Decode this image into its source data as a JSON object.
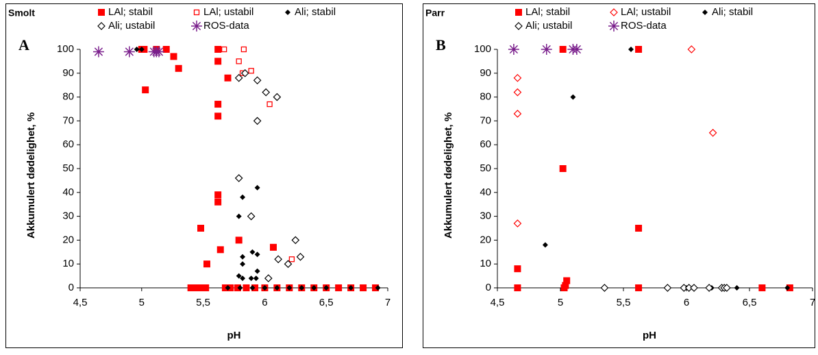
{
  "chart_data": [
    {
      "type": "scatter",
      "title": "Smolt",
      "panel_label": "A",
      "x_label": "pH",
      "y_label": "Akkumulert dødelighet, %",
      "xlim": [
        4.5,
        7
      ],
      "ylim": [
        0,
        100
      ],
      "xticks": [
        {
          "value": 4.5,
          "label": "4,5"
        },
        5,
        {
          "value": 5.5,
          "label": "5,5"
        },
        6,
        {
          "value": 6.5,
          "label": "6,5"
        },
        7
      ],
      "yticks": [
        0,
        10,
        20,
        30,
        40,
        50,
        60,
        70,
        80,
        90,
        100
      ],
      "series": [
        {
          "name": "LAl; stabil",
          "color": "#ff0000",
          "marker": "square",
          "x": [
            5.0,
            5.02,
            5.03,
            5.12,
            5.2,
            5.26,
            5.3,
            5.48,
            5.53,
            5.62,
            5.62,
            5.62,
            5.62,
            5.62,
            5.62,
            5.64,
            5.7,
            5.79,
            6.07,
            5.4,
            5.45,
            5.5,
            5.52,
            5.68,
            5.72,
            5.78,
            5.85,
            5.92,
            6.0,
            6.1,
            6.2,
            6.3,
            6.4,
            6.5,
            6.6,
            6.7,
            6.8,
            6.9
          ],
          "y": [
            100,
            100,
            83,
            100,
            100,
            97,
            92,
            25,
            10,
            100,
            95,
            77,
            72,
            39,
            36,
            16,
            88,
            20,
            17,
            0,
            0,
            0,
            0,
            0,
            0,
            0,
            0,
            0,
            0,
            0,
            0,
            0,
            0,
            0,
            0,
            0,
            0,
            0
          ]
        },
        {
          "name": "LAl; ustabil",
          "color": "#ff0000",
          "marker": "open-square",
          "x": [
            5.67,
            5.83,
            5.79,
            5.82,
            5.89,
            6.04,
            6.22
          ],
          "y": [
            100,
            100,
            95,
            90,
            91,
            77,
            12
          ]
        },
        {
          "name": "Ali; stabil",
          "color": "#000000",
          "marker": "diamond",
          "x": [
            4.96,
            5.0,
            5.94,
            5.82,
            5.79,
            5.9,
            5.94,
            5.82,
            5.82,
            5.94,
            5.79,
            5.89,
            5.93,
            5.82,
            5.7,
            5.8,
            5.9,
            6.0,
            6.1,
            6.2,
            6.3,
            6.4,
            6.5,
            6.7,
            6.92
          ],
          "y": [
            100,
            100,
            42,
            38,
            30,
            15,
            14,
            13,
            10,
            7,
            5,
            4,
            4,
            4,
            0,
            0,
            0,
            0,
            0,
            0,
            0,
            0,
            0,
            0,
            0
          ]
        },
        {
          "name": "Ali; ustabil",
          "color": "#000000",
          "marker": "open-diamond",
          "x": [
            5.79,
            5.84,
            5.94,
            6.01,
            6.1,
            5.94,
            5.79,
            5.89,
            6.25,
            6.29,
            6.11,
            6.19,
            6.03
          ],
          "y": [
            88,
            90,
            87,
            82,
            80,
            70,
            46,
            30,
            20,
            13,
            12,
            10,
            4
          ]
        },
        {
          "name": "ROS-data",
          "color": "#7a1f8c",
          "marker": "asterisk",
          "x": [
            4.65,
            4.9,
            5.1,
            5.12,
            5.14
          ],
          "y": [
            99,
            99,
            99,
            99,
            99
          ]
        }
      ]
    },
    {
      "type": "scatter",
      "title": "Parr",
      "panel_label": "B",
      "x_label": "pH",
      "y_label": "Akkumulert dødelighet, %",
      "xlim": [
        4.5,
        7
      ],
      "ylim": [
        0,
        100
      ],
      "xticks": [
        {
          "value": 4.5,
          "label": "4,5"
        },
        5,
        {
          "value": 5.5,
          "label": "5,5"
        },
        6,
        {
          "value": 6.5,
          "label": "6,5"
        },
        7
      ],
      "yticks": [
        0,
        10,
        20,
        30,
        40,
        50,
        60,
        70,
        80,
        90,
        100
      ],
      "series": [
        {
          "name": "LAl; stabil",
          "color": "#ff0000",
          "marker": "square",
          "x": [
            4.66,
            4.66,
            5.02,
            5.02,
            5.05,
            5.03,
            5.04,
            5.62,
            5.62,
            5.62,
            6.6,
            6.82
          ],
          "y": [
            8,
            0,
            100,
            50,
            3,
            0,
            1,
            100,
            25,
            0,
            0,
            0
          ]
        },
        {
          "name": "LAl; ustabil",
          "color": "#ff0000",
          "marker": "open-diamond",
          "x": [
            4.66,
            4.66,
            4.66,
            4.66,
            6.04,
            6.21
          ],
          "y": [
            88,
            82,
            73,
            27,
            100,
            65
          ]
        },
        {
          "name": "Ali; stabil",
          "color": "#000000",
          "marker": "diamond",
          "x": [
            5.56,
            5.1,
            4.88,
            5.35,
            5.85,
            6.0,
            6.05,
            6.2,
            6.3,
            6.4,
            6.8
          ],
          "y": [
            100,
            80,
            18,
            0,
            0,
            0,
            0,
            0,
            0,
            0,
            0
          ]
        },
        {
          "name": "Ali; ustabil",
          "color": "#000000",
          "marker": "open-diamond",
          "x": [
            5.35,
            5.85,
            5.98,
            6.02,
            6.06,
            6.18,
            6.28,
            6.3,
            6.32
          ],
          "y": [
            0,
            0,
            0,
            0,
            0,
            0,
            0,
            0,
            0
          ]
        },
        {
          "name": "ROS-data",
          "color": "#7a1f8c",
          "marker": "asterisk",
          "x": [
            4.63,
            4.89,
            5.1,
            5.13
          ],
          "y": [
            100,
            100,
            100,
            100
          ]
        }
      ]
    }
  ]
}
